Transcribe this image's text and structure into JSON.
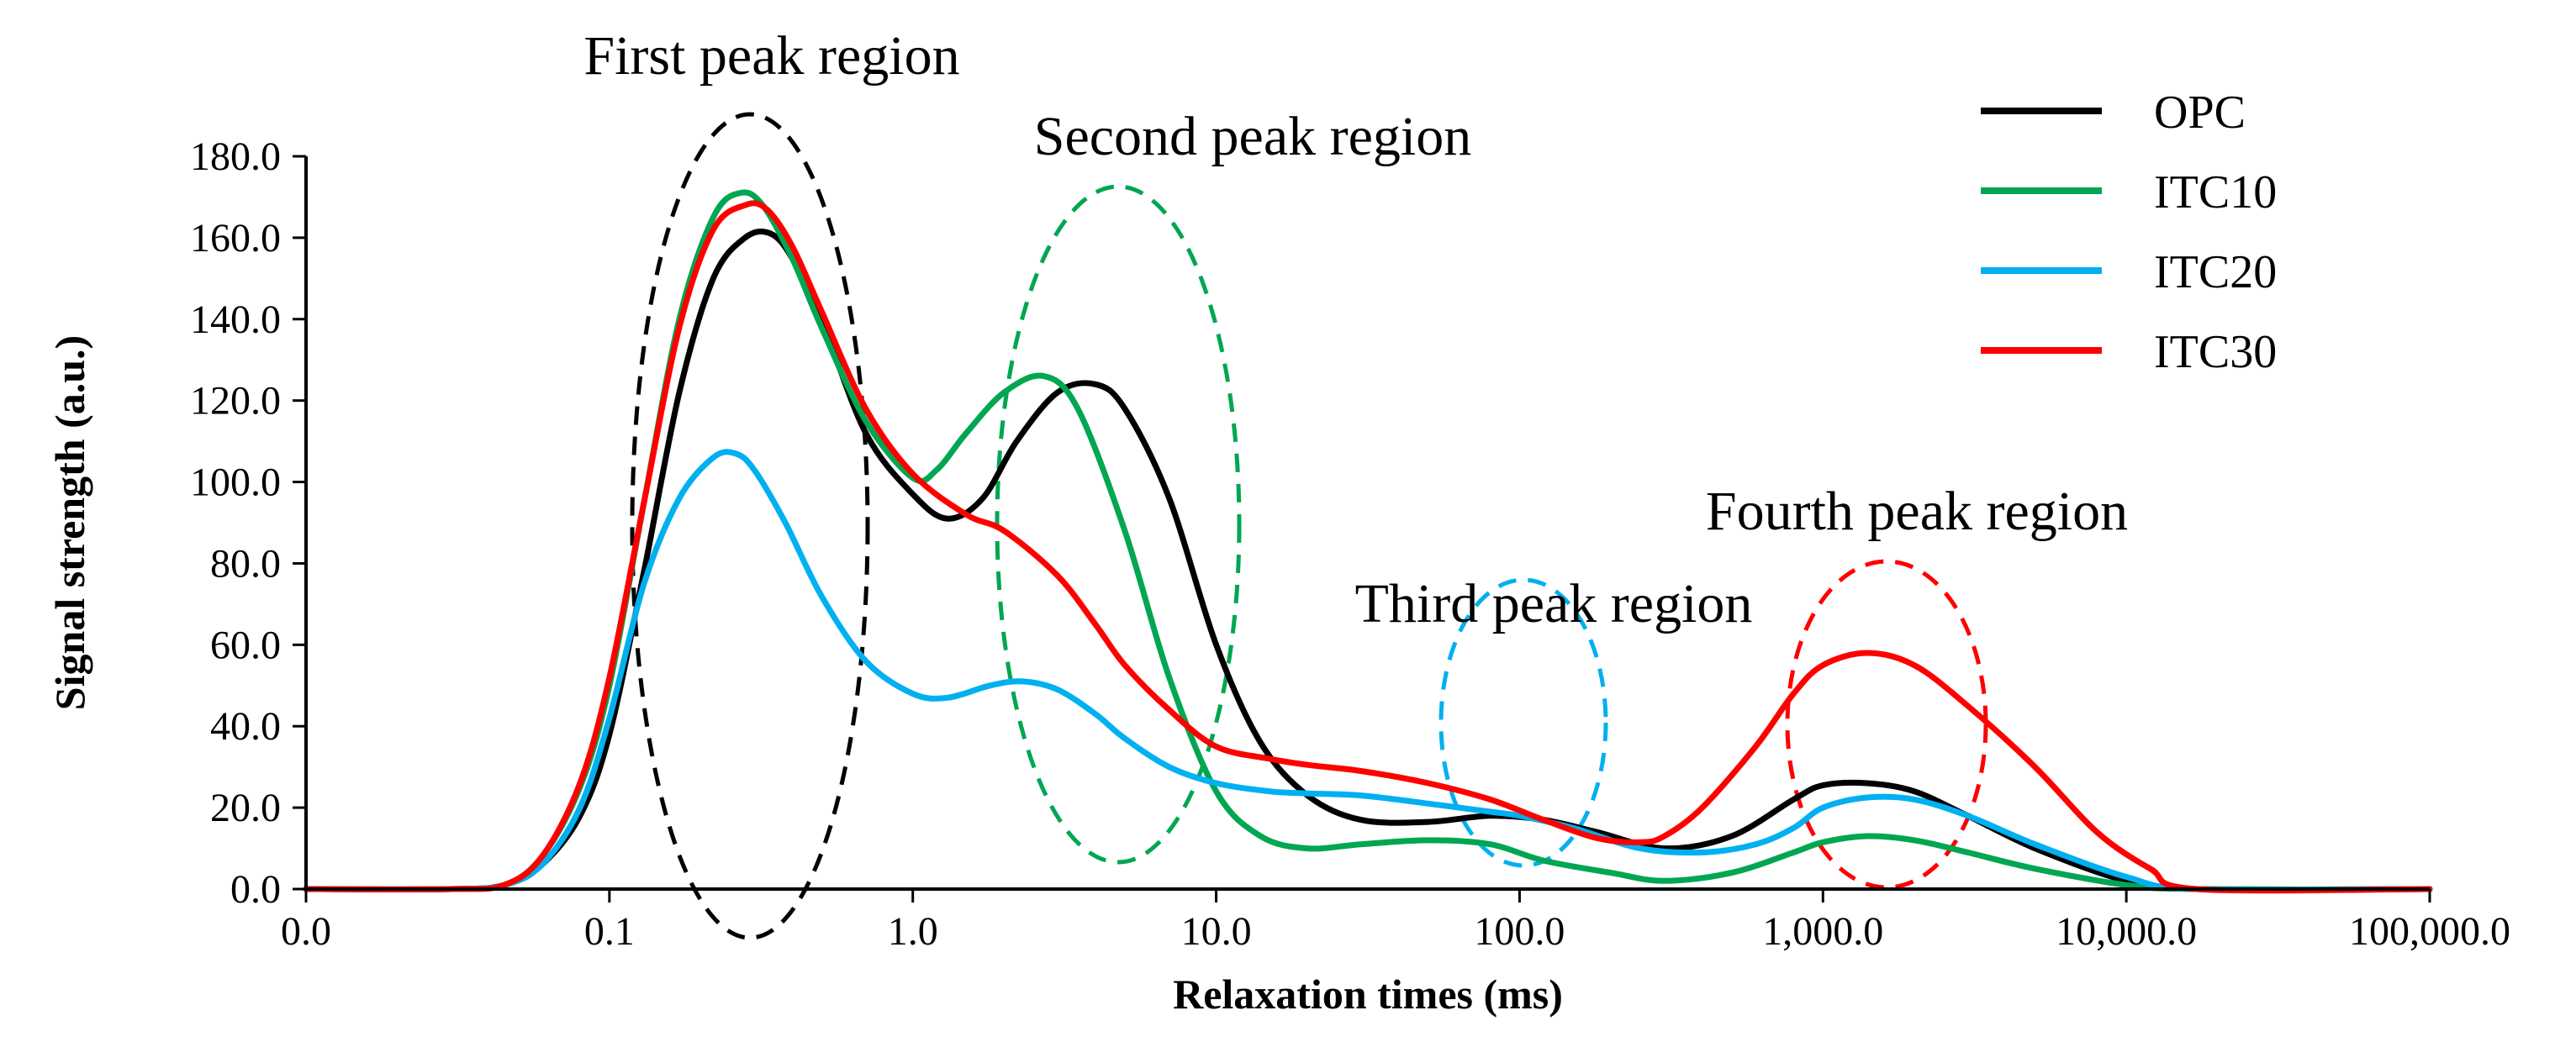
{
  "chart_data": {
    "type": "line",
    "title": "",
    "xlabel": "Relaxation times (ms)",
    "ylabel": "Signal strength (a.u.)",
    "xscale": "log",
    "xlim": [
      0.01,
      100000
    ],
    "ylim": [
      0,
      180
    ],
    "x_ticks": [
      0.01,
      0.1,
      1,
      10,
      100,
      1000,
      10000,
      100000
    ],
    "x_tick_labels": [
      "0.0",
      "0.1",
      "1.0",
      "10.0",
      "100.0",
      "1,000.0",
      "10,000.0",
      "100,000.0"
    ],
    "y_ticks": [
      0,
      20,
      40,
      60,
      80,
      100,
      120,
      140,
      160,
      180
    ],
    "y_tick_labels": [
      "0.0",
      "20.0",
      "40.0",
      "60.0",
      "80.0",
      "100.0",
      "120.0",
      "140.0",
      "160.0",
      "180.0"
    ],
    "grid": false,
    "legend_position": "top-right",
    "series": [
      {
        "name": "OPC",
        "color": "#000000",
        "x": [
          0.01,
          0.03,
          0.045,
          0.06,
          0.08,
          0.1,
          0.13,
          0.17,
          0.22,
          0.28,
          0.34,
          0.4,
          0.5,
          0.7,
          1.0,
          1.3,
          1.7,
          2.2,
          3.0,
          4.0,
          5.0,
          7.0,
          10,
          14,
          20,
          30,
          50,
          80,
          120,
          180,
          300,
          500,
          800,
          1000,
          1400,
          2000,
          3000,
          5000,
          10000,
          17000,
          100000
        ],
        "y": [
          0,
          0,
          1,
          6,
          18,
          38,
          78,
          122,
          150,
          160,
          161,
          155,
          140,
          112,
          97,
          91,
          96,
          110,
          122,
          124,
          118,
          96,
          60,
          36,
          23,
          17,
          16.5,
          18,
          17,
          14,
          10,
          13,
          22,
          25.5,
          26,
          24,
          18,
          10,
          2,
          0,
          0
        ]
      },
      {
        "name": "ITC10",
        "color": "#00A651",
        "x": [
          0.01,
          0.03,
          0.045,
          0.06,
          0.08,
          0.1,
          0.13,
          0.17,
          0.22,
          0.27,
          0.32,
          0.4,
          0.5,
          0.7,
          1.0,
          1.2,
          1.5,
          2.0,
          2.7,
          3.5,
          5.0,
          7.0,
          10,
          14,
          20,
          30,
          50,
          80,
          120,
          200,
          300,
          500,
          800,
          1000,
          1400,
          2000,
          3000,
          5000,
          10000,
          17000,
          100000
        ],
        "y": [
          0,
          0,
          1,
          8,
          25,
          50,
          95,
          140,
          165,
          171,
          168,
          155,
          138,
          115,
          101,
          103,
          112,
          122,
          126,
          118,
          88,
          52,
          24,
          13,
          10,
          11,
          12,
          11,
          7,
          4,
          2,
          4,
          9,
          11.5,
          13,
          12,
          9,
          5,
          1,
          0,
          0
        ]
      },
      {
        "name": "ITC20",
        "color": "#00B0F0",
        "x": [
          0.01,
          0.03,
          0.045,
          0.06,
          0.08,
          0.1,
          0.13,
          0.17,
          0.22,
          0.26,
          0.3,
          0.38,
          0.5,
          0.7,
          1.0,
          1.3,
          1.8,
          2.3,
          3.0,
          4.0,
          5.0,
          7.0,
          10,
          15,
          20,
          30,
          50,
          80,
          100,
          150,
          250,
          400,
          600,
          800,
          1000,
          1400,
          2000,
          3000,
          5000,
          10000,
          17000,
          100000
        ],
        "y": [
          0,
          0,
          1,
          6,
          20,
          42,
          75,
          96,
          106,
          107,
          103,
          90,
          72,
          56,
          48,
          47,
          50,
          51,
          49,
          43,
          37,
          30,
          26,
          24,
          23.5,
          23,
          21,
          19,
          18,
          15,
          10,
          9,
          11,
          15,
          20,
          22.5,
          22,
          18,
          11,
          3,
          0,
          0
        ]
      },
      {
        "name": "ITC30",
        "color": "#FF0000",
        "x": [
          0.01,
          0.03,
          0.045,
          0.06,
          0.08,
          0.1,
          0.13,
          0.17,
          0.22,
          0.28,
          0.33,
          0.4,
          0.5,
          0.7,
          1.0,
          1.5,
          2.0,
          3.0,
          4.0,
          5.0,
          7.0,
          10,
          15,
          20,
          30,
          50,
          80,
          120,
          180,
          250,
          300,
          400,
          600,
          800,
          1000,
          1400,
          2000,
          3000,
          5000,
          8000,
          12000,
          17000,
          100000
        ],
        "y": [
          0,
          0,
          1,
          8,
          26,
          52,
          95,
          138,
          162,
          168,
          167,
          158,
          142,
          118,
          102,
          92,
          88,
          77,
          65,
          55,
          44,
          35,
          32,
          30.5,
          29,
          26,
          22,
          17,
          12.5,
          11.5,
          13,
          20,
          35,
          48,
          55,
          58,
          55,
          45,
          30,
          14,
          5,
          0,
          0
        ]
      }
    ],
    "annotations": [
      {
        "text": "First peak region",
        "color": "#000000"
      },
      {
        "text": "Second peak region",
        "color": "#00A651"
      },
      {
        "text": "Third peak region",
        "color": "#00B0F0"
      },
      {
        "text": "Fourth peak region",
        "color": "#FF0000"
      }
    ]
  }
}
